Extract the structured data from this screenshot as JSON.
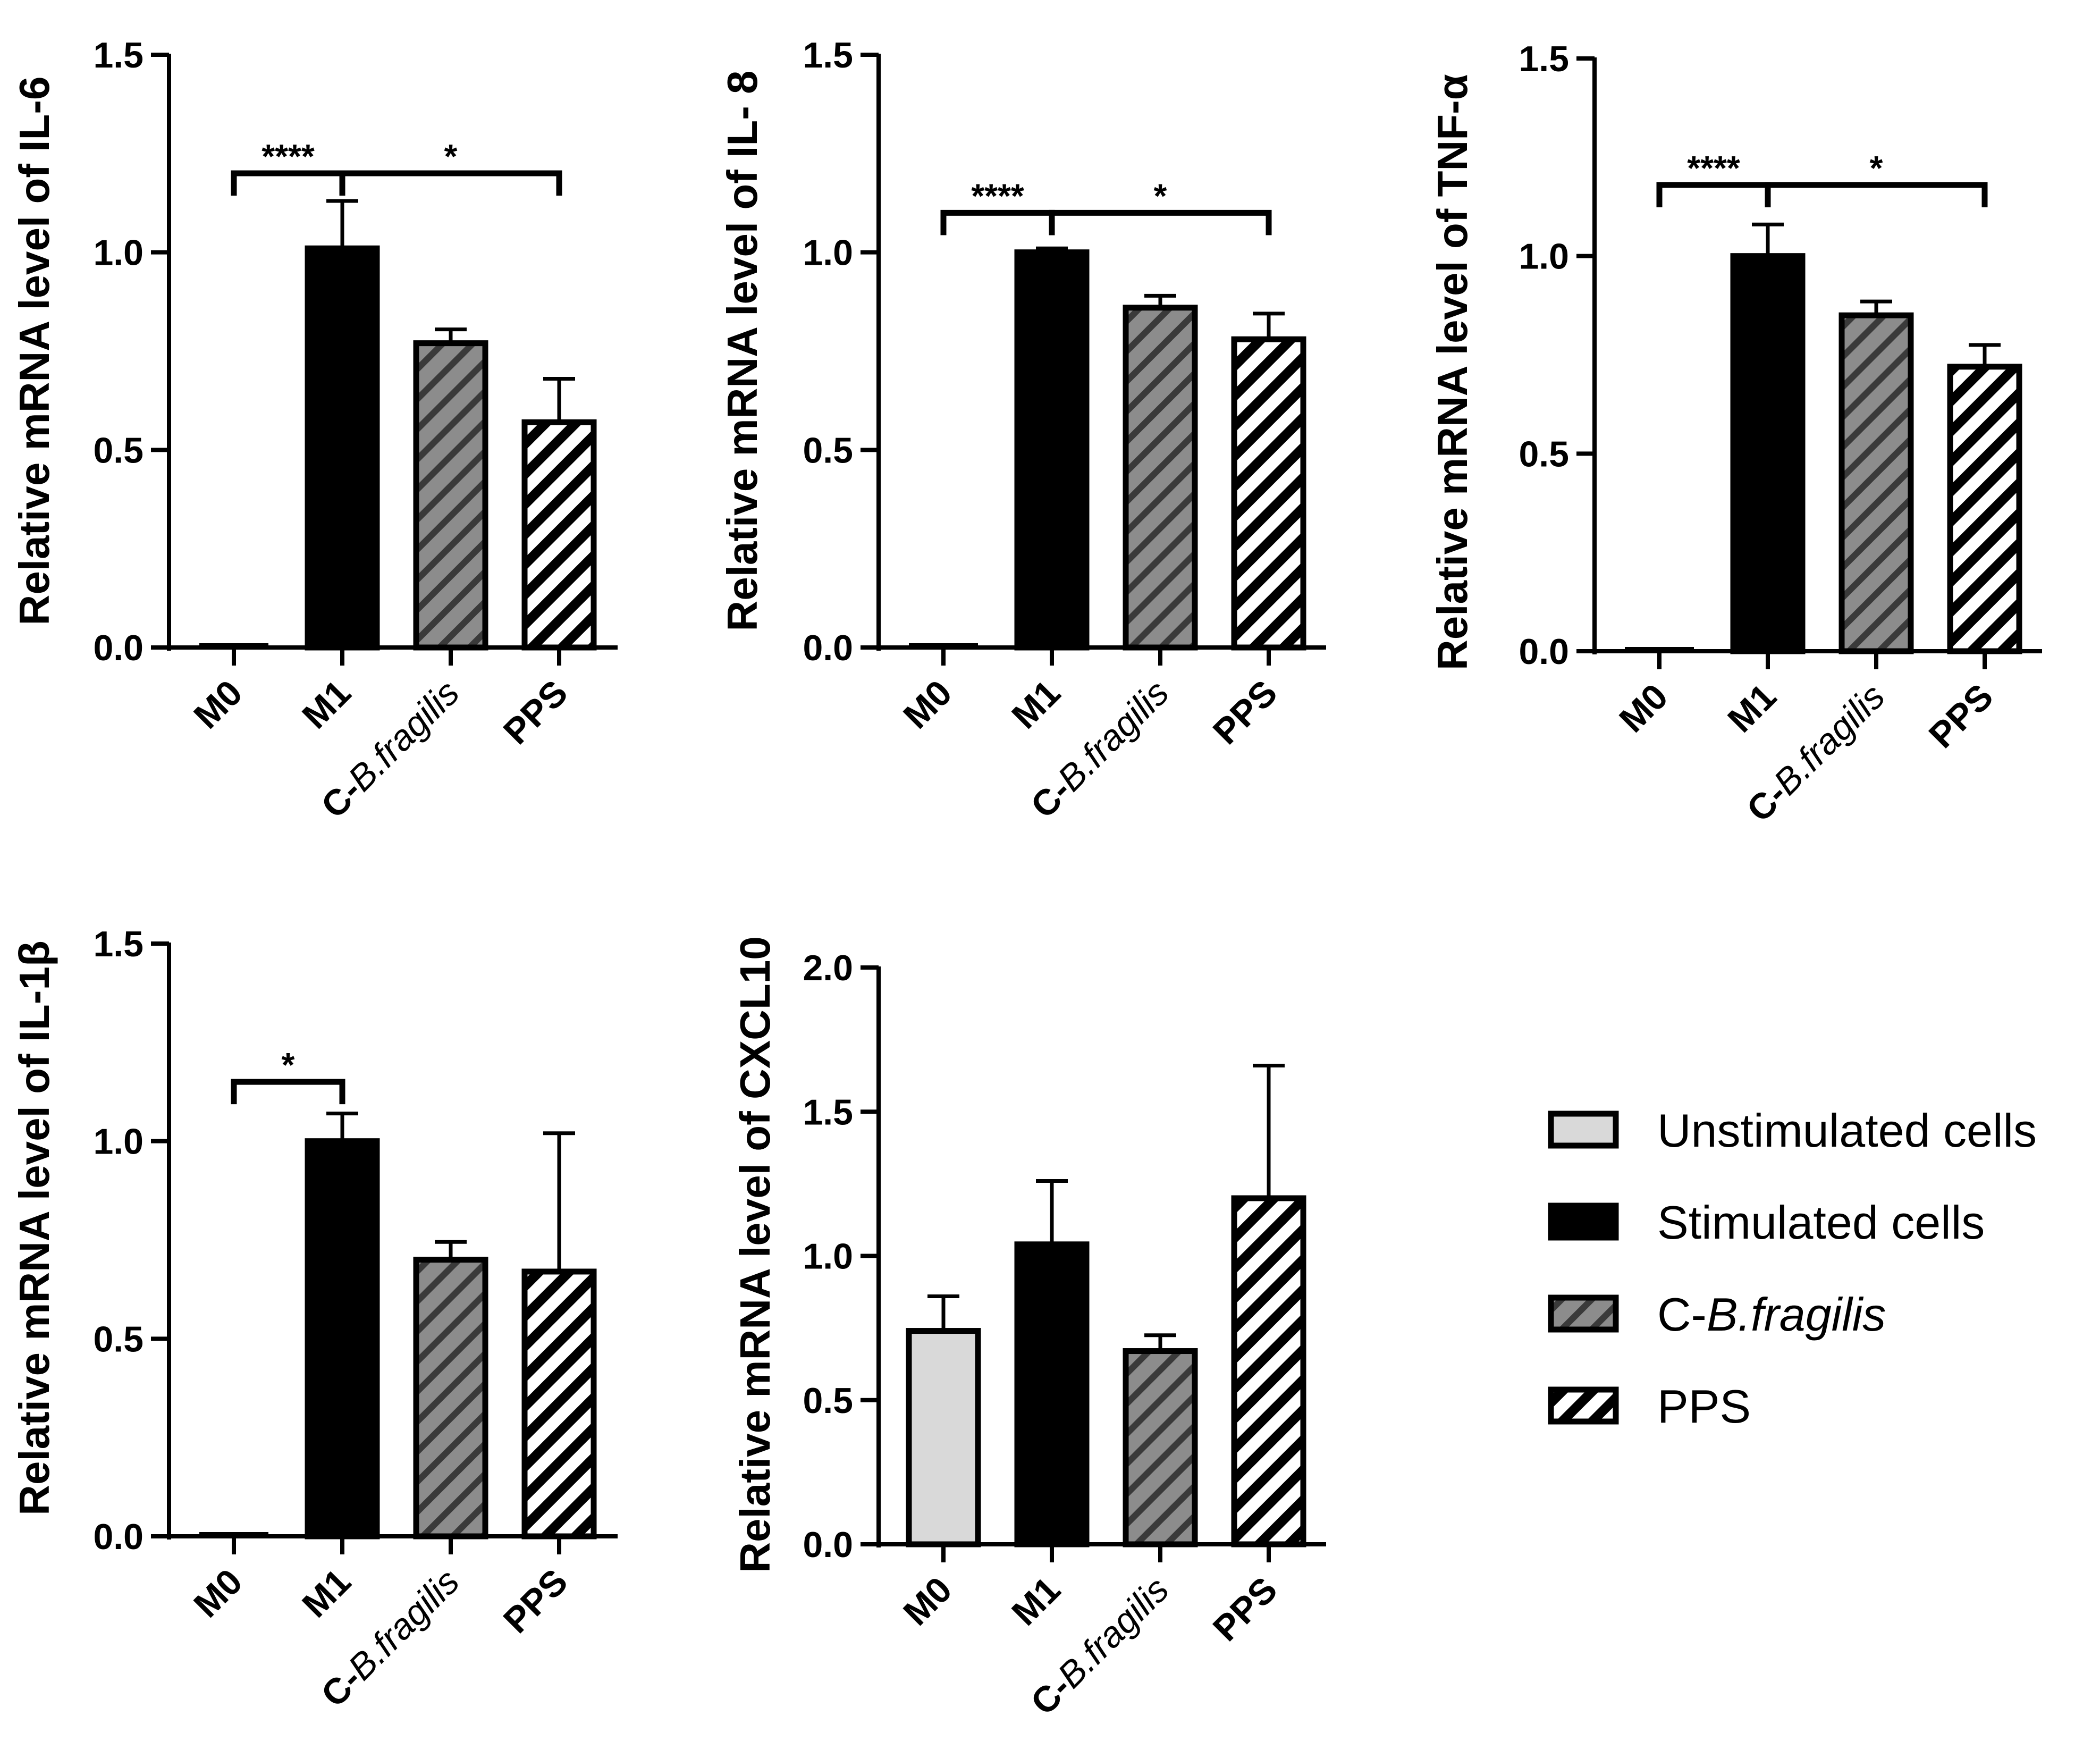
{
  "colors": {
    "unstimulated": "#d9d9d9",
    "stimulated": "#000000",
    "cbf_stripe": "#8c8c8c",
    "pps_stripe": "#ffffff",
    "axis": "#000000"
  },
  "chart_data": [
    {
      "type": "bar",
      "ylabel": "Relative mRNA level of IL-6",
      "categories": [
        "M0",
        "M1",
        "C-B.fragilis",
        "PPS"
      ],
      "cat_prefix": "C-",
      "cat_italic": "B.fragilis",
      "values": [
        0.005,
        1.01,
        0.77,
        0.57
      ],
      "errors": [
        0.0,
        0.12,
        0.035,
        0.11
      ],
      "ylim": [
        0,
        1.5
      ],
      "yticks": [
        "0.0",
        "0.5",
        "1.0",
        "1.5"
      ],
      "significance": [
        {
          "from": 0,
          "to": 1,
          "label": "****",
          "y": 1.2
        },
        {
          "from": 1,
          "to": 3,
          "label": "*",
          "y": 1.2
        }
      ]
    },
    {
      "type": "bar",
      "ylabel": "Relative mRNA level of IL- 8",
      "categories": [
        "M0",
        "M1",
        "C-B.fragilis",
        "PPS"
      ],
      "cat_prefix": "C-",
      "cat_italic": "B.fragilis",
      "values": [
        0.005,
        1.0,
        0.86,
        0.78
      ],
      "errors": [
        0.0,
        0.01,
        0.03,
        0.065
      ],
      "ylim": [
        0,
        1.5
      ],
      "yticks": [
        "0.0",
        "0.5",
        "1.0",
        "1.5"
      ],
      "significance": [
        {
          "from": 0,
          "to": 1,
          "label": "****",
          "y": 1.1
        },
        {
          "from": 1,
          "to": 3,
          "label": "*",
          "y": 1.1
        }
      ]
    },
    {
      "type": "bar",
      "ylabel": "Relative mRNA level of TNF-α",
      "categories": [
        "M0",
        "M1",
        "C-B.fragilis",
        "PPS"
      ],
      "cat_prefix": "C-",
      "cat_italic": "B.fragilis",
      "values": [
        0.005,
        1.0,
        0.85,
        0.72
      ],
      "errors": [
        0.0,
        0.08,
        0.035,
        0.055
      ],
      "ylim": [
        0,
        1.5
      ],
      "yticks": [
        "0.0",
        "0.5",
        "1.0",
        "1.5"
      ],
      "significance": [
        {
          "from": 0,
          "to": 1,
          "label": "****",
          "y": 1.18
        },
        {
          "from": 1,
          "to": 3,
          "label": "*",
          "y": 1.18
        }
      ]
    },
    {
      "type": "bar",
      "ylabel": "Relative mRNA level of IL-1β",
      "categories": [
        "M0",
        "M1",
        "C-B.fragilis",
        "PPS"
      ],
      "cat_prefix": "C-",
      "cat_italic": "B.fragilis",
      "values": [
        0.005,
        1.0,
        0.7,
        0.67
      ],
      "errors": [
        0.0,
        0.07,
        0.045,
        0.35
      ],
      "ylim": [
        0,
        1.5
      ],
      "yticks": [
        "0.0",
        "0.5",
        "1.0",
        "1.5"
      ],
      "significance": [
        {
          "from": 0,
          "to": 1,
          "label": "*",
          "y": 1.15
        }
      ]
    },
    {
      "type": "bar",
      "ylabel": "Relative mRNA level of CXCL10",
      "categories": [
        "M0",
        "M1",
        "C-B.fragilis",
        "PPS"
      ],
      "cat_prefix": "C-",
      "cat_italic": "B.fragilis",
      "values": [
        0.74,
        1.04,
        0.67,
        1.2
      ],
      "errors": [
        0.12,
        0.22,
        0.055,
        0.46
      ],
      "ylim": [
        0,
        2.0
      ],
      "yticks": [
        "0.0",
        "0.5",
        "1.0",
        "1.5",
        "2.0"
      ],
      "significance": []
    }
  ],
  "legend": {
    "position": "right",
    "items": [
      {
        "label": "Unstimulated cells",
        "style": "solid-light"
      },
      {
        "label": "Stimulated cells",
        "style": "solid-black"
      },
      {
        "label_prefix": "C-",
        "label_italic": "B.fragilis",
        "style": "stripe-gray"
      },
      {
        "label": "PPS",
        "style": "stripe-white"
      }
    ]
  }
}
